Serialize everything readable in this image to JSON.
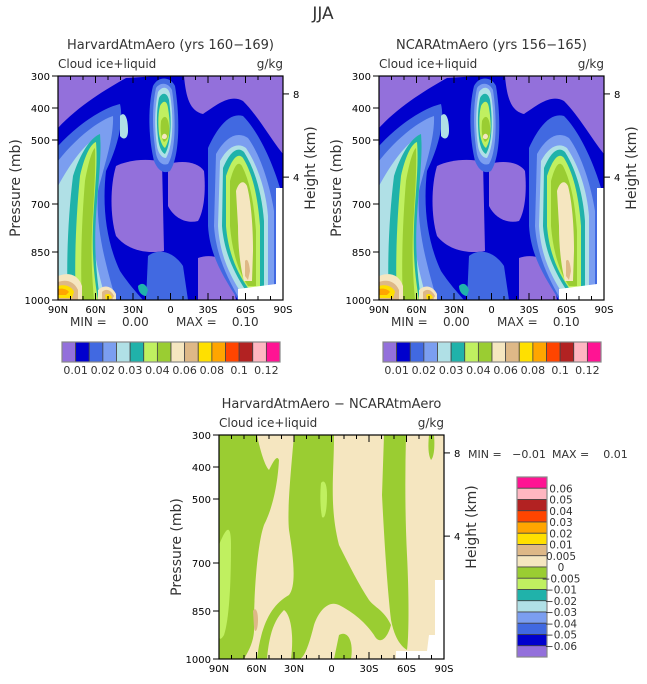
{
  "figure_title": "JJA",
  "colors": {
    "top_levels": [
      "#9370DB",
      "#0000CD",
      "#4169E1",
      "#7B9EF0",
      "#B0E0E6",
      "#20B2AA",
      "#C0F060",
      "#9ACD32",
      "#F5E6C0",
      "#DEB887",
      "#FFE000",
      "#FFA500",
      "#FF4500",
      "#B22222",
      "#FFB6C1",
      "#FF1493"
    ],
    "diff_levels": [
      "#9370DB",
      "#0000CD",
      "#4169E1",
      "#7B9EF0",
      "#B0E0E6",
      "#20B2AA",
      "#C0F060",
      "#9ACD32",
      "#F5E6C0",
      "#DEB887",
      "#FFE000",
      "#FFA500",
      "#FF4500",
      "#B22222",
      "#FFB6C1",
      "#FF1493"
    ]
  },
  "chart_data": [
    {
      "type": "heatmap",
      "subtype": "filled-contour",
      "title": "HarvardAtmAero (yrs 160−169)",
      "left_label": "Cloud ice+liquid",
      "right_label": "g/kg",
      "xlabel": "",
      "ylabel": "Pressure (mb)",
      "y2label": "Height (km)",
      "x_ticks": [
        "90N",
        "60N",
        "30N",
        "0",
        "30S",
        "60S",
        "90S"
      ],
      "y_ticks": [
        "300",
        "400",
        "500",
        "700",
        "850",
        "1000"
      ],
      "y2_ticks": [
        "8",
        "4"
      ],
      "ylim": [
        300,
        1000
      ],
      "min_text": "MIN =    0.00",
      "max_text": "MAX =    0.10",
      "colorbar_labels": [
        "0.01",
        "0.02",
        "0.03",
        "0.04",
        "0.06",
        "0.08",
        "0.1",
        "0.12"
      ],
      "colorbar_orientation": "horizontal"
    },
    {
      "type": "heatmap",
      "subtype": "filled-contour",
      "title": "NCARAtmAero (yrs 156−165)",
      "left_label": "Cloud ice+liquid",
      "right_label": "g/kg",
      "xlabel": "",
      "ylabel": "Pressure (mb)",
      "y2label": "Height (km)",
      "x_ticks": [
        "90N",
        "60N",
        "30N",
        "0",
        "30S",
        "60S",
        "90S"
      ],
      "y_ticks": [
        "300",
        "400",
        "500",
        "700",
        "850",
        "1000"
      ],
      "y2_ticks": [
        "8",
        "4"
      ],
      "ylim": [
        300,
        1000
      ],
      "min_text": "MIN =    0.00",
      "max_text": "MAX =    0.10",
      "colorbar_labels": [
        "0.01",
        "0.02",
        "0.03",
        "0.04",
        "0.06",
        "0.08",
        "0.1",
        "0.12"
      ],
      "colorbar_orientation": "horizontal"
    },
    {
      "type": "heatmap",
      "subtype": "filled-contour",
      "title": "HarvardAtmAero − NCARAtmAero",
      "left_label": "Cloud ice+liquid",
      "right_label": "g/kg",
      "xlabel": "",
      "ylabel": "Pressure (mb)",
      "y2label": "Height (km)",
      "x_ticks": [
        "90N",
        "60N",
        "30N",
        "0",
        "30S",
        "60S",
        "90S"
      ],
      "y_ticks": [
        "300",
        "400",
        "500",
        "700",
        "850",
        "1000"
      ],
      "y2_ticks": [
        "8",
        "4"
      ],
      "ylim": [
        300,
        1000
      ],
      "min_text": "MIN =   −0.01",
      "max_text": "MAX =    0.01",
      "colorbar_labels": [
        "0.06",
        "0.05",
        "0.04",
        "0.03",
        "0.02",
        "0.01",
        "0.005",
        "0",
        "−0.005",
        "−0.01",
        "−0.02",
        "−0.03",
        "−0.04",
        "−0.05",
        "−0.06"
      ],
      "colorbar_orientation": "vertical"
    }
  ]
}
